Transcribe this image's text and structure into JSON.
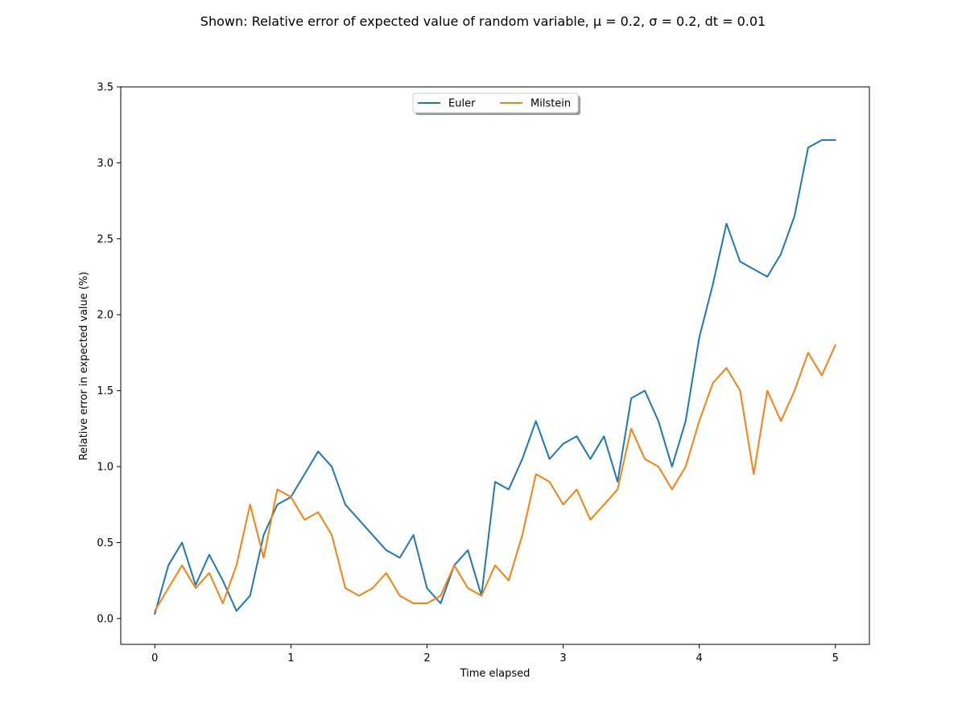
{
  "chart_data": {
    "type": "line",
    "title": "Shown: Relative error of expected value of random variable, μ = 0.2, σ = 0.2, dt = 0.01",
    "xlabel": "Time elapsed",
    "ylabel": "Relative error in expected value (%)",
    "xlim": [
      -0.25,
      5.25
    ],
    "ylim": [
      -0.17,
      3.5
    ],
    "xticks": [
      0,
      1,
      2,
      3,
      4,
      5
    ],
    "xtick_labels": [
      "0",
      "1",
      "2",
      "3",
      "4",
      "5"
    ],
    "yticks": [
      0.0,
      0.5,
      1.0,
      1.5,
      2.0,
      2.5,
      3.0,
      3.5
    ],
    "ytick_labels": [
      "0.0",
      "0.5",
      "1.0",
      "1.5",
      "2.0",
      "2.5",
      "3.0",
      "3.5"
    ],
    "grid": false,
    "legend_position": "upper center",
    "x": [
      0.0,
      0.1,
      0.2,
      0.3,
      0.4,
      0.5,
      0.6,
      0.7,
      0.8,
      0.9,
      1.0,
      1.1,
      1.2,
      1.3,
      1.4,
      1.5,
      1.6,
      1.7,
      1.8,
      1.9,
      2.0,
      2.1,
      2.2,
      2.3,
      2.4,
      2.5,
      2.6,
      2.7,
      2.8,
      2.9,
      3.0,
      3.1,
      3.2,
      3.3,
      3.4,
      3.5,
      3.6,
      3.7,
      3.8,
      3.9,
      4.0,
      4.1,
      4.2,
      4.3,
      4.4,
      4.5,
      4.6,
      4.7,
      4.8,
      4.9,
      5.0
    ],
    "series": [
      {
        "name": "Euler",
        "color": "#1f77b4",
        "values": [
          0.03,
          0.35,
          0.5,
          0.22,
          0.42,
          0.25,
          0.05,
          0.15,
          0.55,
          0.75,
          0.8,
          0.95,
          1.1,
          1.0,
          0.75,
          0.65,
          0.55,
          0.45,
          0.4,
          0.55,
          0.2,
          0.1,
          0.35,
          0.45,
          0.15,
          0.9,
          0.85,
          1.05,
          1.3,
          1.05,
          1.15,
          1.2,
          1.05,
          1.2,
          0.9,
          1.45,
          1.5,
          1.3,
          1.0,
          1.3,
          1.85,
          2.2,
          2.6,
          2.35,
          2.3,
          2.25,
          2.4,
          2.65,
          3.1,
          3.15,
          3.15
        ]
      },
      {
        "name": "Milstein",
        "color": "#ff7f0e",
        "values": [
          0.05,
          0.2,
          0.35,
          0.2,
          0.3,
          0.1,
          0.35,
          0.75,
          0.4,
          0.85,
          0.8,
          0.65,
          0.7,
          0.55,
          0.2,
          0.15,
          0.2,
          0.3,
          0.15,
          0.1,
          0.1,
          0.15,
          0.35,
          0.2,
          0.15,
          0.35,
          0.25,
          0.55,
          0.95,
          0.9,
          0.75,
          0.85,
          0.65,
          0.75,
          0.85,
          1.25,
          1.05,
          1.0,
          0.85,
          1.0,
          1.3,
          1.55,
          1.65,
          1.5,
          0.95,
          1.5,
          1.3,
          1.5,
          1.75,
          1.6,
          1.8
        ]
      }
    ]
  }
}
